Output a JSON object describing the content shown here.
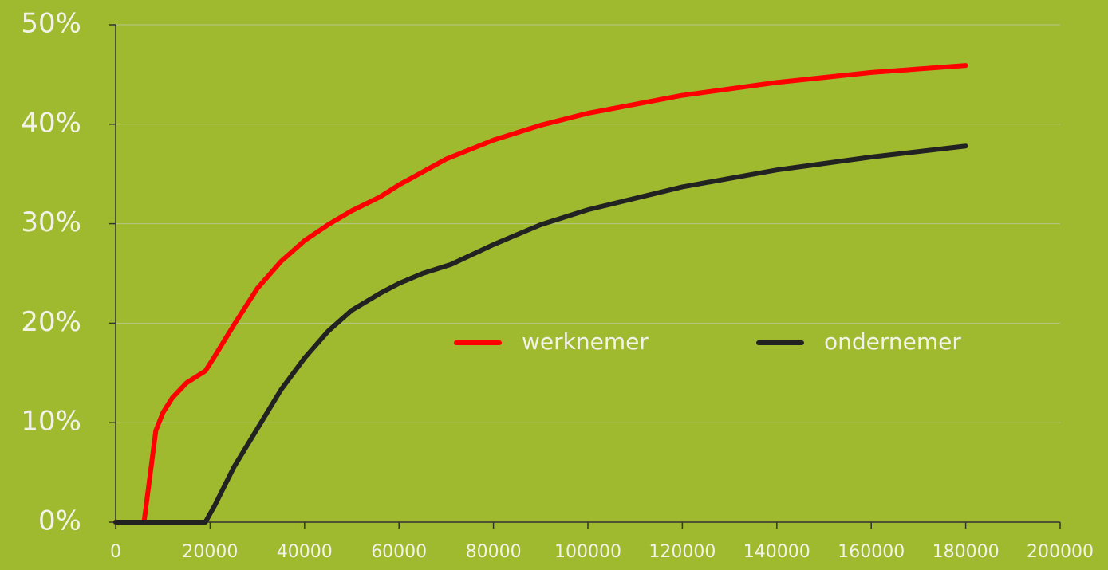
{
  "chart_data": {
    "type": "line",
    "xlim": [
      0,
      200000
    ],
    "xticks": [
      0,
      20000,
      40000,
      60000,
      80000,
      100000,
      120000,
      140000,
      160000,
      180000,
      200000
    ],
    "ylim": [
      0,
      50
    ],
    "yticks": [
      {
        "value": 0,
        "label": "0%"
      },
      {
        "value": 10,
        "label": "10%"
      },
      {
        "value": 20,
        "label": "20%"
      },
      {
        "value": 30,
        "label": "30%"
      },
      {
        "value": 40,
        "label": "40%"
      },
      {
        "value": 50,
        "label": "50%"
      }
    ],
    "grid": true,
    "series": [
      {
        "name": "werknemer",
        "color": "#ff0000",
        "x": [
          0,
          6000,
          8500,
          10000,
          12000,
          15000,
          19000,
          21000,
          25000,
          30000,
          35000,
          40000,
          45000,
          50000,
          56000,
          60000,
          70000,
          80000,
          90000,
          100000,
          120000,
          140000,
          160000,
          180000
        ],
        "values": [
          0,
          0,
          9.2,
          11,
          12.5,
          14,
          15.2,
          16.7,
          19.8,
          23.5,
          26.2,
          28.3,
          29.9,
          31.3,
          32.7,
          33.9,
          36.5,
          38.4,
          39.9,
          41.1,
          42.9,
          44.2,
          45.2,
          45.9
        ]
      },
      {
        "name": "ondernemer",
        "color": "#222222",
        "x": [
          0,
          19000,
          21000,
          25000,
          30000,
          35000,
          40000,
          45000,
          50000,
          56000,
          60000,
          65000,
          71000,
          80000,
          90000,
          100000,
          120000,
          140000,
          160000,
          180000
        ],
        "values": [
          0,
          0,
          1.7,
          5.5,
          9.4,
          13.3,
          16.5,
          19.2,
          21.3,
          23,
          24,
          25,
          25.9,
          27.9,
          29.9,
          31.4,
          33.7,
          35.4,
          36.7,
          37.8
        ]
      }
    ]
  }
}
